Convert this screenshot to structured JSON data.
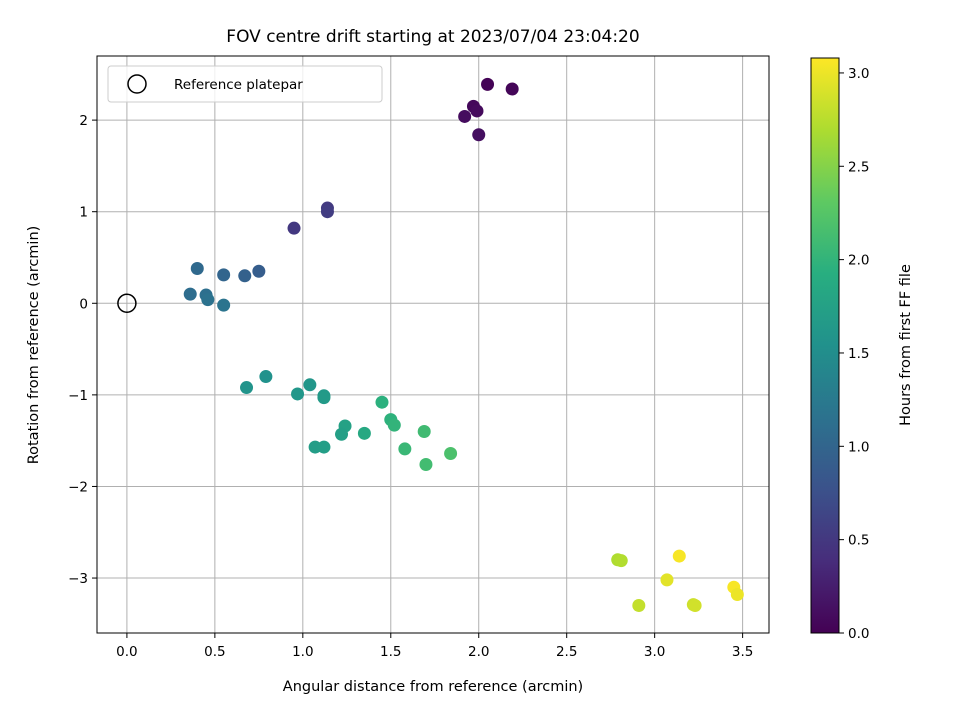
{
  "chart_data": {
    "type": "scatter",
    "title": "FOV centre drift starting at 2023/07/04 23:04:20",
    "xlabel": "Angular distance from reference (arcmin)",
    "ylabel": "Rotation from reference (arcmin)",
    "xlim": [
      -0.17,
      3.65
    ],
    "ylim": [
      -3.6,
      2.7
    ],
    "xticks": [
      0.0,
      0.5,
      1.0,
      1.5,
      2.0,
      2.5,
      3.0,
      3.5
    ],
    "xtick_labels": [
      "0.0",
      "0.5",
      "1.0",
      "1.5",
      "2.0",
      "2.5",
      "3.0",
      "3.5"
    ],
    "yticks": [
      -3,
      -2,
      -1,
      0,
      1,
      2
    ],
    "ytick_labels": [
      "−3",
      "−2",
      "−1",
      "0",
      "1",
      "2"
    ],
    "grid": true,
    "legend": {
      "position": "upper-left",
      "entries": [
        "Reference platepar"
      ]
    },
    "reference_point": {
      "x": 0.0,
      "y": 0.0
    },
    "colorbar": {
      "label": "Hours from first FF file",
      "colormap": "viridis",
      "range": [
        0.0,
        3.08
      ],
      "ticks": [
        0.0,
        0.5,
        1.0,
        1.5,
        2.0,
        2.5,
        3.0
      ],
      "tick_labels": [
        "0.0",
        "0.5",
        "1.0",
        "1.5",
        "2.0",
        "2.5",
        "3.0"
      ]
    },
    "points": [
      {
        "x": 2.05,
        "y": 2.39,
        "c": 0.02
      },
      {
        "x": 2.19,
        "y": 2.34,
        "c": 0.04
      },
      {
        "x": 1.97,
        "y": 2.15,
        "c": 0.06
      },
      {
        "x": 1.99,
        "y": 2.1,
        "c": 0.08
      },
      {
        "x": 1.92,
        "y": 2.04,
        "c": 0.1
      },
      {
        "x": 2.0,
        "y": 1.84,
        "c": 0.12
      },
      {
        "x": 1.14,
        "y": 1.04,
        "c": 0.52
      },
      {
        "x": 1.14,
        "y": 1.0,
        "c": 0.55
      },
      {
        "x": 0.95,
        "y": 0.82,
        "c": 0.5
      },
      {
        "x": 0.75,
        "y": 0.35,
        "c": 0.9
      },
      {
        "x": 0.67,
        "y": 0.3,
        "c": 0.95
      },
      {
        "x": 0.55,
        "y": 0.31,
        "c": 1.0
      },
      {
        "x": 0.4,
        "y": 0.38,
        "c": 1.05
      },
      {
        "x": 0.36,
        "y": 0.1,
        "c": 1.1
      },
      {
        "x": 0.45,
        "y": 0.09,
        "c": 1.12
      },
      {
        "x": 0.46,
        "y": 0.04,
        "c": 1.15
      },
      {
        "x": 0.55,
        "y": -0.02,
        "c": 1.18
      },
      {
        "x": 0.79,
        "y": -0.8,
        "c": 1.55
      },
      {
        "x": 0.68,
        "y": -0.92,
        "c": 1.58
      },
      {
        "x": 1.04,
        "y": -0.89,
        "c": 1.6
      },
      {
        "x": 0.97,
        "y": -0.99,
        "c": 1.62
      },
      {
        "x": 1.12,
        "y": -1.01,
        "c": 1.64
      },
      {
        "x": 1.12,
        "y": -1.03,
        "c": 1.66
      },
      {
        "x": 1.24,
        "y": -1.34,
        "c": 1.75
      },
      {
        "x": 1.22,
        "y": -1.43,
        "c": 1.72
      },
      {
        "x": 1.07,
        "y": -1.57,
        "c": 1.7
      },
      {
        "x": 1.12,
        "y": -1.57,
        "c": 1.71
      },
      {
        "x": 1.35,
        "y": -1.42,
        "c": 1.85
      },
      {
        "x": 1.45,
        "y": -1.08,
        "c": 1.95
      },
      {
        "x": 1.5,
        "y": -1.27,
        "c": 1.97
      },
      {
        "x": 1.52,
        "y": -1.33,
        "c": 2.0
      },
      {
        "x": 1.58,
        "y": -1.59,
        "c": 2.05
      },
      {
        "x": 1.69,
        "y": -1.4,
        "c": 2.1
      },
      {
        "x": 1.7,
        "y": -1.76,
        "c": 2.12
      },
      {
        "x": 1.84,
        "y": -1.64,
        "c": 2.18
      },
      {
        "x": 2.79,
        "y": -2.8,
        "c": 2.7
      },
      {
        "x": 2.81,
        "y": -2.81,
        "c": 2.72
      },
      {
        "x": 2.91,
        "y": -3.3,
        "c": 2.8
      },
      {
        "x": 3.07,
        "y": -3.02,
        "c": 2.95
      },
      {
        "x": 3.14,
        "y": -2.76,
        "c": 3.05
      },
      {
        "x": 3.22,
        "y": -3.29,
        "c": 2.85
      },
      {
        "x": 3.23,
        "y": -3.3,
        "c": 2.87
      },
      {
        "x": 3.45,
        "y": -3.1,
        "c": 3.05
      },
      {
        "x": 3.47,
        "y": -3.18,
        "c": 3.0
      }
    ]
  }
}
